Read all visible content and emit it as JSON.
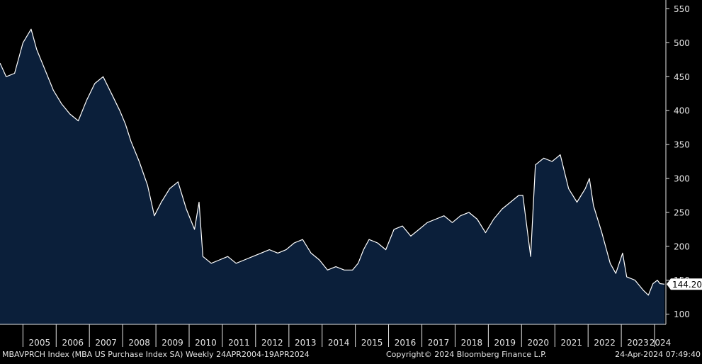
{
  "chart_data": {
    "type": "area",
    "title": "",
    "xlabel": "",
    "ylabel": "",
    "ylim": [
      85,
      563
    ],
    "xlim": [
      "2004-04-24",
      "2024-04-19"
    ],
    "y_ticks": [
      100,
      150,
      200,
      250,
      300,
      350,
      400,
      450,
      500,
      550
    ],
    "x_tick_labels": [
      "2005",
      "2006",
      "2007",
      "2008",
      "2009",
      "2010",
      "2011",
      "2012",
      "2013",
      "2014",
      "2015",
      "2016",
      "2017",
      "2018",
      "2019",
      "2020",
      "2021",
      "2022",
      "2023",
      "2024"
    ],
    "grid": false,
    "legend": "none",
    "last_value_label": "144.20",
    "series": [
      {
        "x": [
          "2004-04-24",
          "2004-07-01",
          "2004-10-01",
          "2005-01-01",
          "2005-04-01",
          "2005-06-01",
          "2005-09-01",
          "2005-12-01",
          "2006-03-01",
          "2006-06-01",
          "2006-09-01",
          "2006-12-01",
          "2007-03-01",
          "2007-06-01",
          "2007-09-01",
          "2007-12-01",
          "2008-02-01",
          "2008-04-01",
          "2008-07-01",
          "2008-10-01",
          "2008-12-15",
          "2009-03-01",
          "2009-06-01",
          "2009-09-01",
          "2009-12-01",
          "2010-03-01",
          "2010-04-20",
          "2010-06-01",
          "2010-09-01",
          "2010-12-01",
          "2011-03-01",
          "2011-06-01",
          "2011-09-01",
          "2011-12-01",
          "2012-03-01",
          "2012-06-01",
          "2012-09-01",
          "2012-12-01",
          "2013-03-01",
          "2013-06-01",
          "2013-09-01",
          "2013-12-01",
          "2014-03-01",
          "2014-06-01",
          "2014-09-01",
          "2014-12-01",
          "2015-02-01",
          "2015-04-01",
          "2015-06-01",
          "2015-09-01",
          "2015-12-01",
          "2016-03-01",
          "2016-06-01",
          "2016-09-01",
          "2016-12-01",
          "2017-03-01",
          "2017-06-01",
          "2017-09-01",
          "2017-12-01",
          "2018-03-01",
          "2018-06-01",
          "2018-09-01",
          "2018-12-01",
          "2019-03-01",
          "2019-06-01",
          "2019-09-01",
          "2019-12-01",
          "2020-01-15",
          "2020-04-10",
          "2020-06-01",
          "2020-09-01",
          "2020-12-01",
          "2021-01-15",
          "2021-03-01",
          "2021-06-01",
          "2021-09-01",
          "2021-12-01",
          "2022-01-15",
          "2022-03-01",
          "2022-06-01",
          "2022-09-01",
          "2022-11-01",
          "2023-01-15",
          "2023-03-01",
          "2023-06-01",
          "2023-09-01",
          "2023-10-25",
          "2023-12-15",
          "2024-02-01",
          "2024-03-01",
          "2024-04-19"
        ],
        "values": [
          470,
          450,
          455,
          500,
          520,
          490,
          460,
          430,
          410,
          395,
          385,
          415,
          440,
          450,
          425,
          400,
          380,
          355,
          325,
          290,
          245,
          265,
          285,
          295,
          255,
          225,
          265,
          185,
          175,
          180,
          185,
          175,
          180,
          185,
          190,
          195,
          190,
          195,
          205,
          210,
          190,
          180,
          165,
          170,
          165,
          165,
          175,
          195,
          210,
          205,
          195,
          225,
          230,
          215,
          225,
          235,
          240,
          245,
          235,
          245,
          250,
          240,
          220,
          240,
          255,
          265,
          275,
          275,
          185,
          320,
          330,
          325,
          330,
          335,
          285,
          265,
          285,
          300,
          260,
          220,
          175,
          160,
          190,
          155,
          150,
          135,
          128,
          145,
          150,
          145,
          144.2
        ]
      }
    ]
  },
  "footer": {
    "left": "MBAVPRCH Index (MBA US Purchase Index SA)  Weekly 24APR2004-19APR2024",
    "center": "Copyright© 2024 Bloomberg Finance L.P.",
    "right": "24-Apr-2024 07:49:40"
  },
  "colors": {
    "background": "#000000",
    "area_fill": "#0b1f3a",
    "line": "#ffffff",
    "axis": "#e6e6e6",
    "text": "#e6e6e6"
  }
}
